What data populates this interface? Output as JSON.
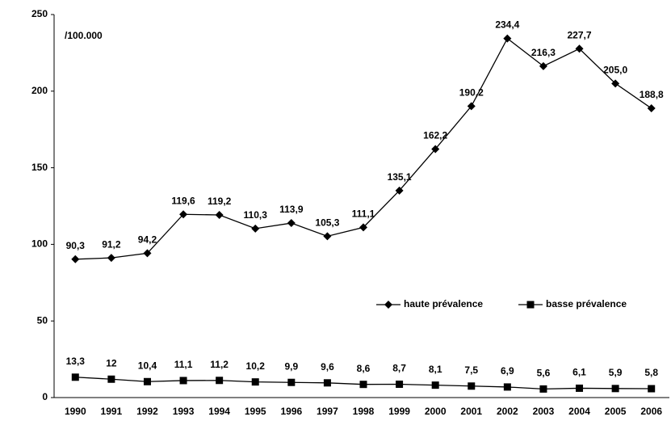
{
  "chart_data": {
    "type": "line",
    "annotation": "/100.000",
    "categories": [
      "1990",
      "1991",
      "1992",
      "1993",
      "1994",
      "1995",
      "1996",
      "1997",
      "1998",
      "1999",
      "2000",
      "2001",
      "2002",
      "2003",
      "2004",
      "2005",
      "2006"
    ],
    "series": [
      {
        "name": "haute prévalence",
        "color": "#000000",
        "marker": "diamond",
        "values": [
          90.3,
          91.2,
          94.2,
          119.6,
          119.2,
          110.3,
          113.9,
          105.3,
          111.1,
          135.1,
          162.2,
          190.2,
          234.4,
          216.3,
          227.7,
          205.0,
          188.8
        ],
        "value_labels": [
          "90,3",
          "91,2",
          "94,2",
          "119,6",
          "119,2",
          "110,3",
          "113,9",
          "105,3",
          "111,1",
          "135,1",
          "162,2",
          "190,2",
          "234,4",
          "216,3",
          "227,7",
          "205,0",
          "188,8"
        ]
      },
      {
        "name": "basse prévalence",
        "color": "#000000",
        "marker": "square",
        "values": [
          13.3,
          12,
          10.4,
          11.1,
          11.2,
          10.2,
          9.9,
          9.6,
          8.6,
          8.7,
          8.1,
          7.5,
          6.9,
          5.6,
          6.1,
          5.9,
          5.8
        ],
        "value_labels": [
          "13,3",
          "12",
          "10,4",
          "11,1",
          "11,2",
          "10,2",
          "9,9",
          "9,6",
          "8,6",
          "8,7",
          "8,1",
          "7,5",
          "6,9",
          "5,6",
          "6,1",
          "5,9",
          "5,8"
        ]
      }
    ],
    "ylim": [
      0,
      250
    ],
    "yticks": [
      0,
      50,
      100,
      150,
      200,
      250
    ],
    "grid": false
  }
}
